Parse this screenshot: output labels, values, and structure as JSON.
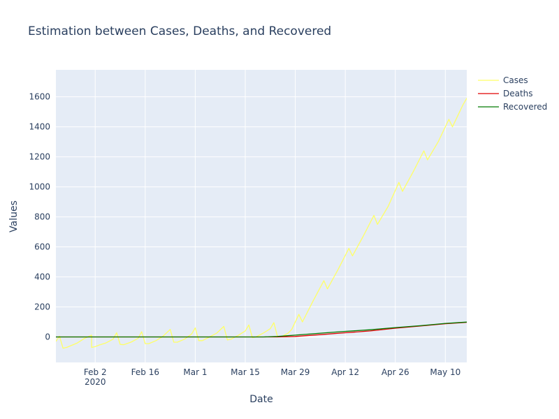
{
  "chart_data": {
    "type": "line",
    "title": "Estimation between Cases, Deaths, and Recovered",
    "xlabel": "Date",
    "ylabel": "Values",
    "x_range": [
      "2020-01-22",
      "2020-05-16"
    ],
    "ylim": [
      -170,
      1780
    ],
    "x_ticks": [
      {
        "date": "2020-02-02",
        "label": "Feb 2",
        "sublabel": "2020"
      },
      {
        "date": "2020-02-16",
        "label": "Feb 16"
      },
      {
        "date": "2020-03-01",
        "label": "Mar 1"
      },
      {
        "date": "2020-03-15",
        "label": "Mar 15"
      },
      {
        "date": "2020-03-29",
        "label": "Mar 29"
      },
      {
        "date": "2020-04-12",
        "label": "Apr 12"
      },
      {
        "date": "2020-04-26",
        "label": "Apr 26"
      },
      {
        "date": "2020-05-10",
        "label": "May 10"
      }
    ],
    "y_ticks": [
      0,
      200,
      400,
      600,
      800,
      1000,
      1200,
      1400,
      1600
    ],
    "grid": true,
    "legend_position": "top-right",
    "plot_bg": "#E5ECF6",
    "series": [
      {
        "name": "Cases",
        "color": "#FFFF66",
        "points": [
          [
            "2020-01-22",
            -30
          ],
          [
            "2020-01-23",
            5
          ],
          [
            "2020-01-24",
            -75
          ],
          [
            "2020-01-25",
            -70
          ],
          [
            "2020-01-26",
            -60
          ],
          [
            "2020-01-28",
            -40
          ],
          [
            "2020-01-30",
            -10
          ],
          [
            "2020-02-01",
            12
          ],
          [
            "2020-02-01",
            -70
          ],
          [
            "2020-02-02",
            -65
          ],
          [
            "2020-02-03",
            -55
          ],
          [
            "2020-02-05",
            -40
          ],
          [
            "2020-02-07",
            -15
          ],
          [
            "2020-02-08",
            28
          ],
          [
            "2020-02-09",
            -50
          ],
          [
            "2020-02-10",
            -52
          ],
          [
            "2020-02-12",
            -35
          ],
          [
            "2020-02-14",
            -10
          ],
          [
            "2020-02-15",
            35
          ],
          [
            "2020-02-16",
            -45
          ],
          [
            "2020-02-17",
            -45
          ],
          [
            "2020-02-19",
            -25
          ],
          [
            "2020-02-21",
            5
          ],
          [
            "2020-02-23",
            50
          ],
          [
            "2020-02-24",
            -35
          ],
          [
            "2020-02-25",
            -35
          ],
          [
            "2020-02-27",
            -15
          ],
          [
            "2020-02-29",
            20
          ],
          [
            "2020-03-01",
            60
          ],
          [
            "2020-03-02",
            -25
          ],
          [
            "2020-03-03",
            -25
          ],
          [
            "2020-03-05",
            0
          ],
          [
            "2020-03-07",
            25
          ],
          [
            "2020-03-09",
            70
          ],
          [
            "2020-03-10",
            -20
          ],
          [
            "2020-03-11",
            -15
          ],
          [
            "2020-03-13",
            10
          ],
          [
            "2020-03-15",
            40
          ],
          [
            "2020-03-16",
            80
          ],
          [
            "2020-03-17",
            -5
          ],
          [
            "2020-03-18",
            0
          ],
          [
            "2020-03-20",
            25
          ],
          [
            "2020-03-22",
            55
          ],
          [
            "2020-03-23",
            95
          ],
          [
            "2020-03-24",
            5
          ],
          [
            "2020-03-25",
            0
          ],
          [
            "2020-03-27",
            25
          ],
          [
            "2020-03-28",
            50
          ],
          [
            "2020-03-30",
            150
          ],
          [
            "2020-03-31",
            100
          ],
          [
            "2020-04-03",
            240
          ],
          [
            "2020-04-06",
            375
          ],
          [
            "2020-04-07",
            320
          ],
          [
            "2020-04-10",
            450
          ],
          [
            "2020-04-13",
            590
          ],
          [
            "2020-04-14",
            540
          ],
          [
            "2020-04-17",
            670
          ],
          [
            "2020-04-20",
            810
          ],
          [
            "2020-04-21",
            750
          ],
          [
            "2020-04-24",
            870
          ],
          [
            "2020-04-27",
            1030
          ],
          [
            "2020-04-28",
            970
          ],
          [
            "2020-05-01",
            1100
          ],
          [
            "2020-05-04",
            1240
          ],
          [
            "2020-05-05",
            1180
          ],
          [
            "2020-05-08",
            1300
          ],
          [
            "2020-05-11",
            1450
          ],
          [
            "2020-05-12",
            1400
          ],
          [
            "2020-05-15",
            1550
          ],
          [
            "2020-05-18",
            1670
          ],
          [
            "2020-05-19",
            1610
          ],
          [
            "2020-05-20",
            1670
          ]
        ]
      },
      {
        "name": "Deaths",
        "color": "#E00000",
        "points": [
          [
            "2020-01-22",
            0
          ],
          [
            "2020-03-20",
            0
          ],
          [
            "2020-03-24",
            0
          ],
          [
            "2020-03-29",
            3
          ],
          [
            "2020-04-05",
            15
          ],
          [
            "2020-04-12",
            28
          ],
          [
            "2020-04-19",
            40
          ],
          [
            "2020-04-26",
            58
          ],
          [
            "2020-05-03",
            73
          ],
          [
            "2020-05-10",
            88
          ],
          [
            "2020-05-20",
            103
          ]
        ]
      },
      {
        "name": "Recovered",
        "color": "#007A00",
        "points": [
          [
            "2020-01-22",
            0
          ],
          [
            "2020-03-20",
            0
          ],
          [
            "2020-03-24",
            3
          ],
          [
            "2020-03-29",
            12
          ],
          [
            "2020-04-05",
            25
          ],
          [
            "2020-04-12",
            37
          ],
          [
            "2020-04-19",
            48
          ],
          [
            "2020-04-26",
            62
          ],
          [
            "2020-05-03",
            75
          ],
          [
            "2020-05-10",
            90
          ],
          [
            "2020-05-20",
            105
          ]
        ]
      }
    ]
  }
}
